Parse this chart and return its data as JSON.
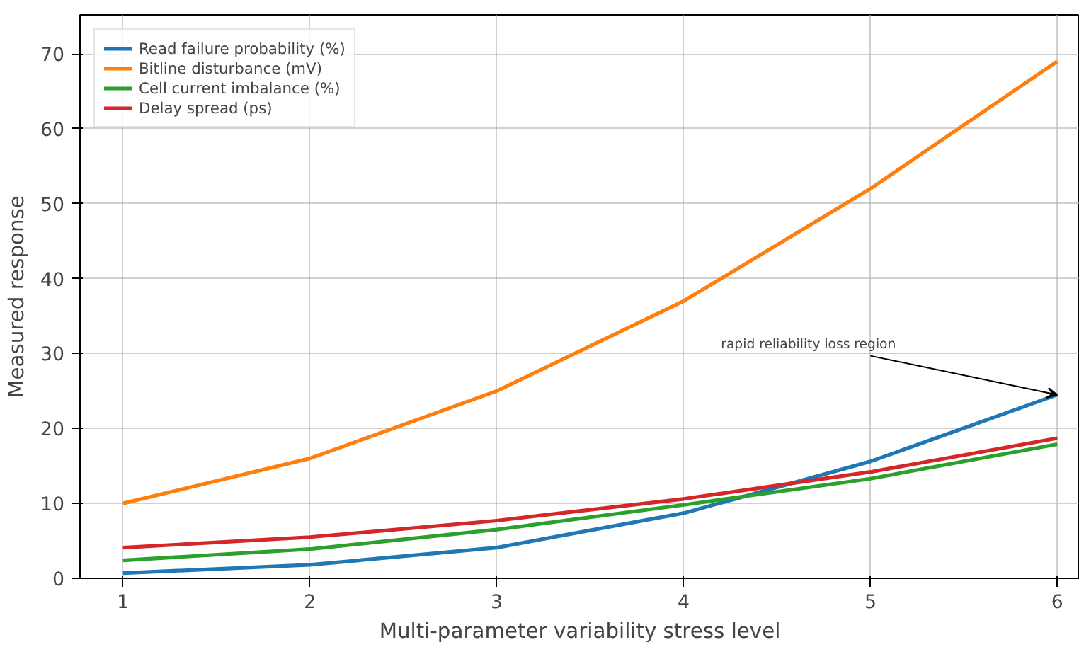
{
  "chart_data": {
    "type": "line",
    "xlabel": "Multi-parameter variability stress level",
    "ylabel": "Measured response",
    "x": [
      1,
      2,
      3,
      4,
      5,
      6
    ],
    "series": [
      {
        "name": "Read failure probability (%)",
        "color": "#1f77b4",
        "values": [
          0.7,
          1.8,
          4.1,
          8.7,
          15.6,
          24.5
        ]
      },
      {
        "name": "Bitline disturbance (mV)",
        "color": "#ff7f0e",
        "values": [
          10,
          16,
          25,
          37,
          52,
          69
        ]
      },
      {
        "name": "Cell current imbalance (%)",
        "color": "#2ca02c",
        "values": [
          2.4,
          3.9,
          6.5,
          9.8,
          13.3,
          17.9
        ]
      },
      {
        "name": "Delay spread (ps)",
        "color": "#d62728",
        "values": [
          4.1,
          5.5,
          7.7,
          10.6,
          14.2,
          18.7
        ]
      }
    ],
    "xlim": [
      0.77,
      6.12
    ],
    "ylim": [
      0,
      75.2
    ],
    "xticks": [
      1,
      2,
      3,
      4,
      5,
      6
    ],
    "yticks": [
      0,
      10,
      20,
      30,
      40,
      50,
      60,
      70
    ],
    "annotations": [
      {
        "text": "rapid reliability loss region",
        "x": 6,
        "y": 24.5
      }
    ],
    "grid": true,
    "legend": "top left",
    "line_style": "solid",
    "marker": "none"
  }
}
